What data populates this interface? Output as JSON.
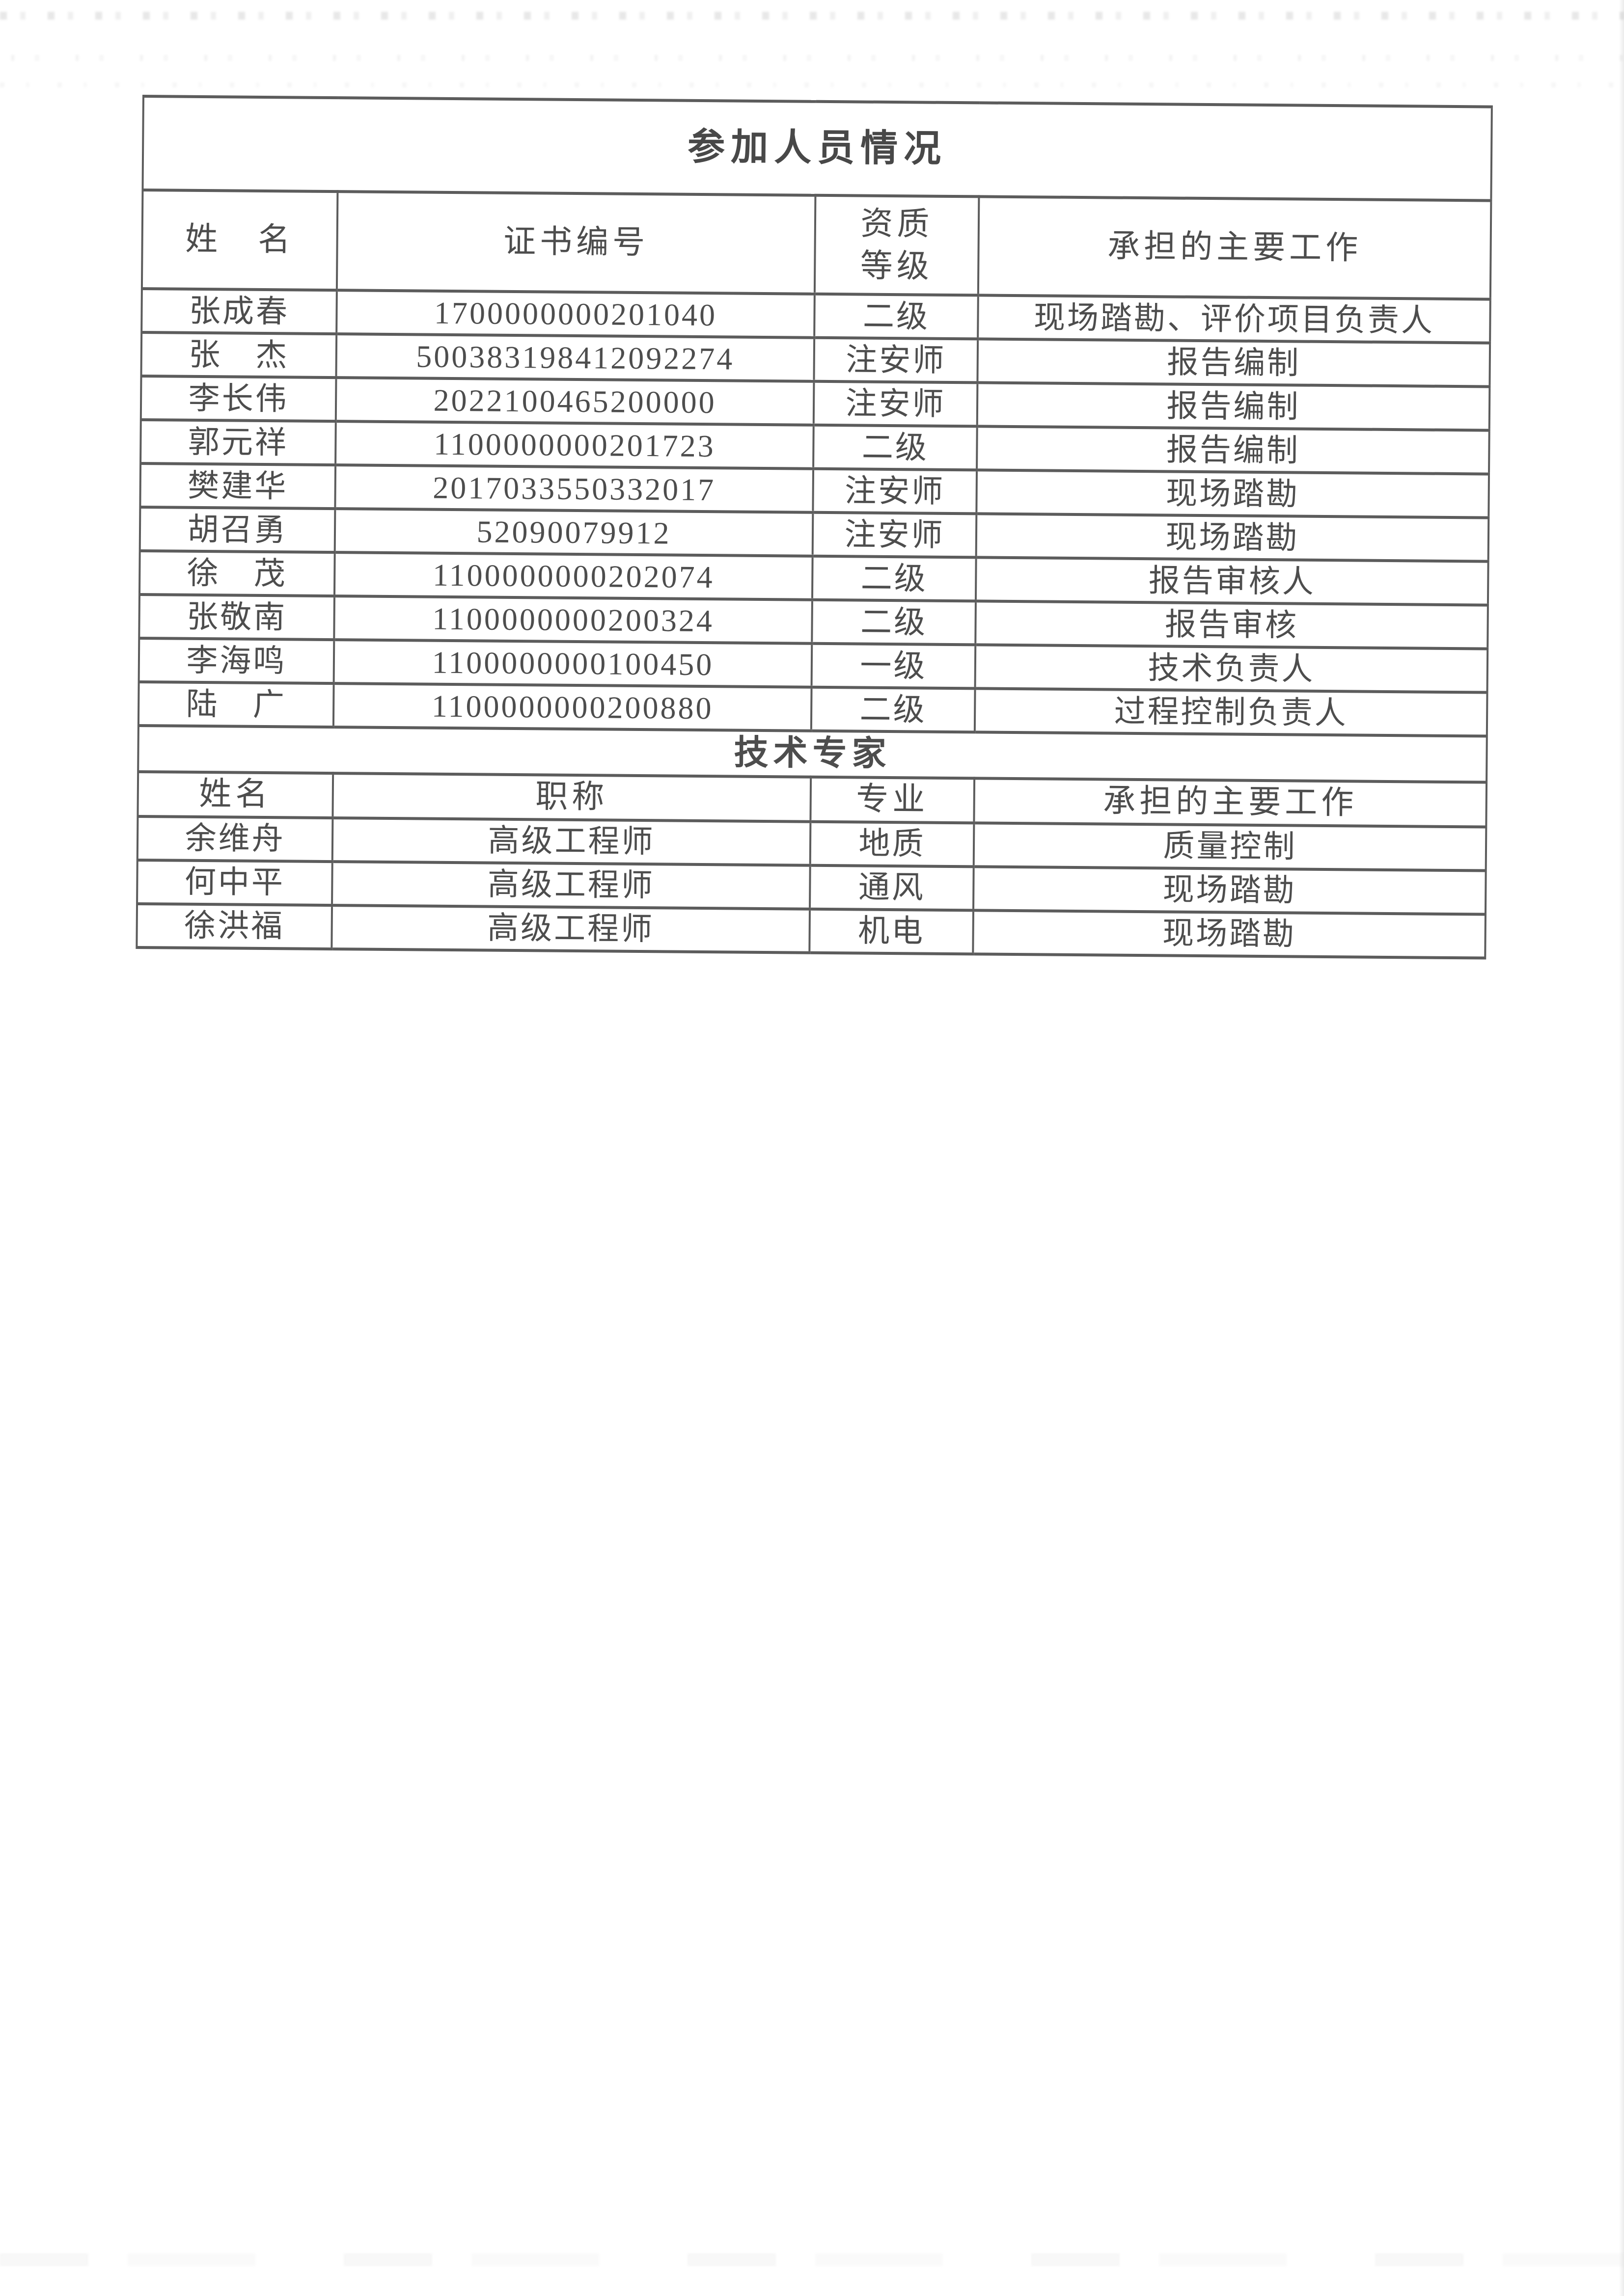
{
  "colors": {
    "text": "#4d4d4d",
    "border": "#5c5c5c",
    "background": "#ffffff"
  },
  "participants_table": {
    "title": "参加人员情况",
    "headers": {
      "name": "姓　名",
      "cert": "证书编号",
      "level": "资质 等级",
      "work": "承担的主要工作"
    },
    "rows": [
      {
        "name": "张成春",
        "cert": "1700000000201040",
        "level": "二级",
        "work": "现场踏勘、评价项目负责人"
      },
      {
        "name": "张　杰",
        "cert": "500383198412092274",
        "level": "注安师",
        "work": "报告编制"
      },
      {
        "name": "李长伟",
        "cert": "2022100465200000",
        "level": "注安师",
        "work": "报告编制"
      },
      {
        "name": "郭元祥",
        "cert": "1100000000201723",
        "level": "二级",
        "work": "报告编制"
      },
      {
        "name": "樊建华",
        "cert": "2017033550332017",
        "level": "注安师",
        "work": "现场踏勘"
      },
      {
        "name": "胡召勇",
        "cert": "52090079912",
        "level": "注安师",
        "work": "现场踏勘"
      },
      {
        "name": "徐　茂",
        "cert": "1100000000202074",
        "level": "二级",
        "work": "报告审核人"
      },
      {
        "name": "张敬南",
        "cert": "1100000000200324",
        "level": "二级",
        "work": "报告审核"
      },
      {
        "name": "李海鸣",
        "cert": "1100000000100450",
        "level": "一级",
        "work": "技术负责人"
      },
      {
        "name": "陆　广",
        "cert": "1100000000200880",
        "level": "二级",
        "work": "过程控制负责人"
      }
    ]
  },
  "experts_table": {
    "title": "技术专家",
    "headers": {
      "name": "姓名",
      "title": "职称",
      "major": "专业",
      "work": "承担的主要工作"
    },
    "rows": [
      {
        "name": "余维舟",
        "title": "高级工程师",
        "major": "地质",
        "work": "质量控制"
      },
      {
        "name": "何中平",
        "title": "高级工程师",
        "major": "通风",
        "work": "现场踏勘"
      },
      {
        "name": "徐洪福",
        "title": "高级工程师",
        "major": "机电",
        "work": "现场踏勘"
      }
    ]
  }
}
